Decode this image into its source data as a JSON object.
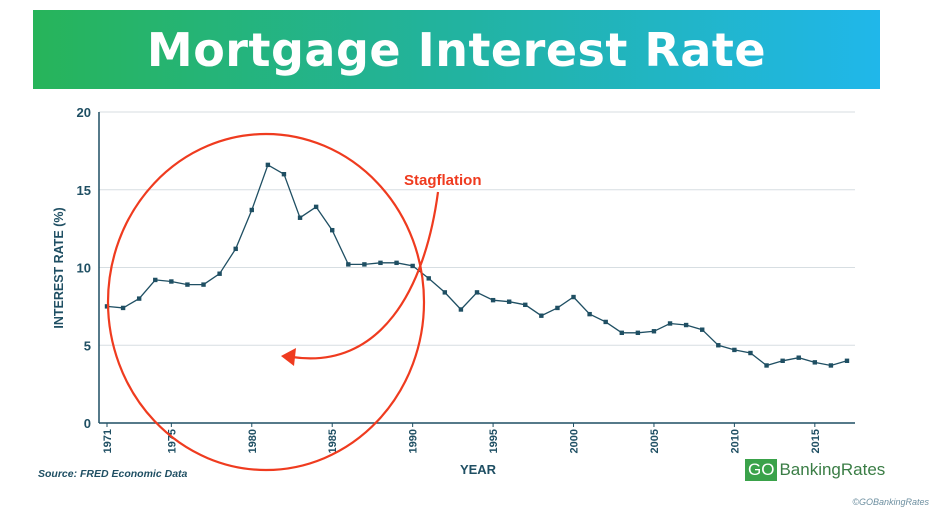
{
  "banner": {
    "title": "Mortgage Interest Rate"
  },
  "footer": {
    "source": "Source: FRED Economic Data",
    "brand_box": "GO",
    "brand_text": "BankingRates",
    "copyright": "©GOBankingRates"
  },
  "colors": {
    "line": "#1f4f63",
    "annotation": "#ef3b1f",
    "grid": "#d7dee2",
    "banner_start": "#27b45a",
    "banner_end": "#20b7ea"
  },
  "chart_data": {
    "type": "line",
    "title": "Mortgage Interest Rate",
    "xlabel": "YEAR",
    "ylabel": "INTEREST RATE (%)",
    "xlim": [
      1971,
      2017
    ],
    "ylim": [
      0,
      20
    ],
    "yticks": [
      0,
      5,
      10,
      15,
      20
    ],
    "xticks": [
      "1971",
      "1975",
      "1980",
      "1985",
      "1990",
      "1995",
      "2000",
      "2005",
      "2010",
      "2015"
    ],
    "grid": true,
    "annotation": "Stagflation",
    "x": [
      1971,
      1972,
      1973,
      1974,
      1975,
      1976,
      1977,
      1978,
      1979,
      1980,
      1981,
      1982,
      1983,
      1984,
      1985,
      1986,
      1987,
      1988,
      1989,
      1990,
      1991,
      1992,
      1993,
      1994,
      1995,
      1996,
      1997,
      1998,
      1999,
      2000,
      2001,
      2002,
      2003,
      2004,
      2005,
      2006,
      2007,
      2008,
      2009,
      2010,
      2011,
      2012,
      2013,
      2014,
      2015,
      2016,
      2017
    ],
    "values": [
      7.5,
      7.4,
      8.0,
      9.2,
      9.1,
      8.9,
      8.9,
      9.6,
      11.2,
      13.7,
      16.6,
      16.0,
      13.2,
      13.9,
      12.4,
      10.2,
      10.2,
      10.3,
      10.3,
      10.1,
      9.3,
      8.4,
      7.3,
      8.4,
      7.9,
      7.8,
      7.6,
      6.9,
      7.4,
      8.1,
      7.0,
      6.5,
      5.8,
      5.8,
      5.9,
      6.4,
      6.3,
      6.0,
      5.0,
      4.7,
      4.5,
      3.7,
      4.0,
      4.2,
      3.9,
      3.7,
      4.0
    ]
  }
}
